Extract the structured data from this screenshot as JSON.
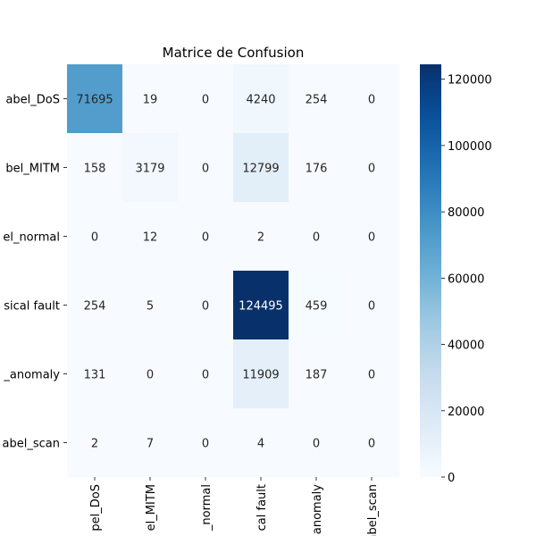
{
  "chart_data": {
    "type": "heatmap",
    "title": "Matrice de Confusion",
    "xlabel": "",
    "ylabel": "",
    "row_labels": [
      "abel_DoS",
      "bel_MITM",
      "el_normal",
      "sical fault",
      "_anomaly",
      "abel_scan"
    ],
    "col_labels": [
      "pel_DoS",
      "el_MITM",
      "_normal",
      "cal fault",
      "anomaly",
      "abel_scan"
    ],
    "values": [
      [
        71695,
        19,
        0,
        4240,
        254,
        0
      ],
      [
        158,
        3179,
        0,
        12799,
        176,
        0
      ],
      [
        0,
        12,
        0,
        2,
        0,
        0
      ],
      [
        254,
        5,
        0,
        124495,
        459,
        0
      ],
      [
        131,
        0,
        0,
        11909,
        187,
        0
      ],
      [
        2,
        7,
        0,
        4,
        0,
        0
      ]
    ],
    "colormap": "Blues",
    "colorbar": {
      "min": 0,
      "max": 124495,
      "ticks": [
        0,
        20000,
        40000,
        60000,
        80000,
        100000,
        120000
      ]
    }
  }
}
